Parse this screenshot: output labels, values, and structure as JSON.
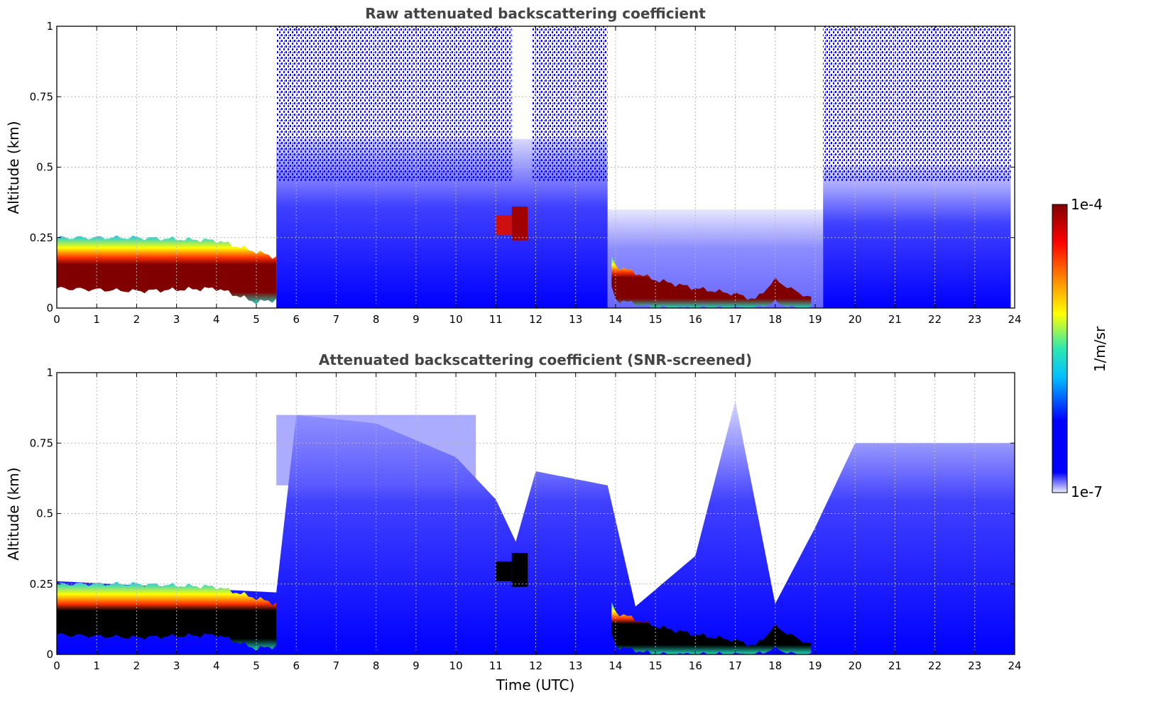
{
  "chart_data": [
    {
      "type": "heatmap",
      "title": "Raw attenuated backscattering coefficient",
      "xlabel": "",
      "ylabel": "Altitude (km)",
      "xlim": [
        0,
        24
      ],
      "ylim": [
        0,
        1
      ],
      "x_ticks": [
        "0",
        "1",
        "2",
        "3",
        "4",
        "5",
        "6",
        "7",
        "8",
        "9",
        "10",
        "11",
        "12",
        "13",
        "14",
        "15",
        "16",
        "17",
        "18",
        "19",
        "20",
        "21",
        "22",
        "23",
        "24"
      ],
      "y_ticks": [
        "0",
        "0.25",
        "0.5",
        "0.75",
        "1"
      ],
      "grid": true,
      "layer_profile": {
        "time_utc": [
          0,
          2,
          4,
          5,
          5.5,
          6,
          8,
          10,
          11,
          11.8,
          12,
          13,
          13.8,
          14,
          15,
          16,
          17,
          17.5,
          18,
          18.5,
          19,
          19.2,
          20,
          22,
          24
        ],
        "dense_layer_top_km": [
          0.25,
          0.25,
          0.24,
          0.2,
          0.18,
          null,
          null,
          null,
          null,
          null,
          null,
          null,
          0.22,
          0.15,
          0.1,
          0.07,
          0.05,
          0.03,
          0.1,
          0.06,
          0.03,
          null,
          null,
          null,
          null
        ],
        "dense_layer_bottom_km": [
          0.07,
          0.06,
          0.07,
          0.02,
          0.03,
          null,
          null,
          null,
          null,
          null,
          null,
          null,
          0.12,
          0.03,
          0.0,
          0.0,
          0.0,
          0.0,
          0.02,
          0.0,
          0.0,
          null,
          null,
          null,
          null
        ]
      }
    },
    {
      "type": "heatmap",
      "title": "Attenuated backscattering coefficient (SNR-screened)",
      "xlabel": "Time (UTC)",
      "ylabel": "Altitude (km)",
      "xlim": [
        0,
        24
      ],
      "ylim": [
        0,
        1
      ],
      "x_ticks": [
        "0",
        "1",
        "2",
        "3",
        "4",
        "5",
        "6",
        "7",
        "8",
        "9",
        "10",
        "11",
        "12",
        "13",
        "14",
        "15",
        "16",
        "17",
        "18",
        "19",
        "20",
        "21",
        "22",
        "23",
        "24"
      ],
      "y_ticks": [
        "0",
        "0.25",
        "0.5",
        "0.75",
        "1"
      ],
      "grid": true,
      "screened_signal_top_km": {
        "time_utc": [
          0,
          5.5,
          6,
          8,
          10,
          11,
          11.5,
          12,
          13.8,
          14.5,
          16,
          17,
          18,
          19,
          20,
          24
        ],
        "value": [
          0.26,
          0.22,
          0.85,
          0.82,
          0.7,
          0.55,
          0.4,
          0.65,
          0.6,
          0.17,
          0.35,
          0.9,
          0.18,
          0.45,
          0.75,
          0.75
        ]
      }
    }
  ],
  "colorbar": {
    "label": "1/m/sr",
    "max_label": "1e-4",
    "min_label": "1e-7",
    "scale": "log",
    "colormap": "jet",
    "colors": [
      "#eeeeff",
      "#0000ff",
      "#00bfff",
      "#2ee8b0",
      "#ffff00",
      "#ff7f00",
      "#ff0000",
      "#800000"
    ]
  }
}
